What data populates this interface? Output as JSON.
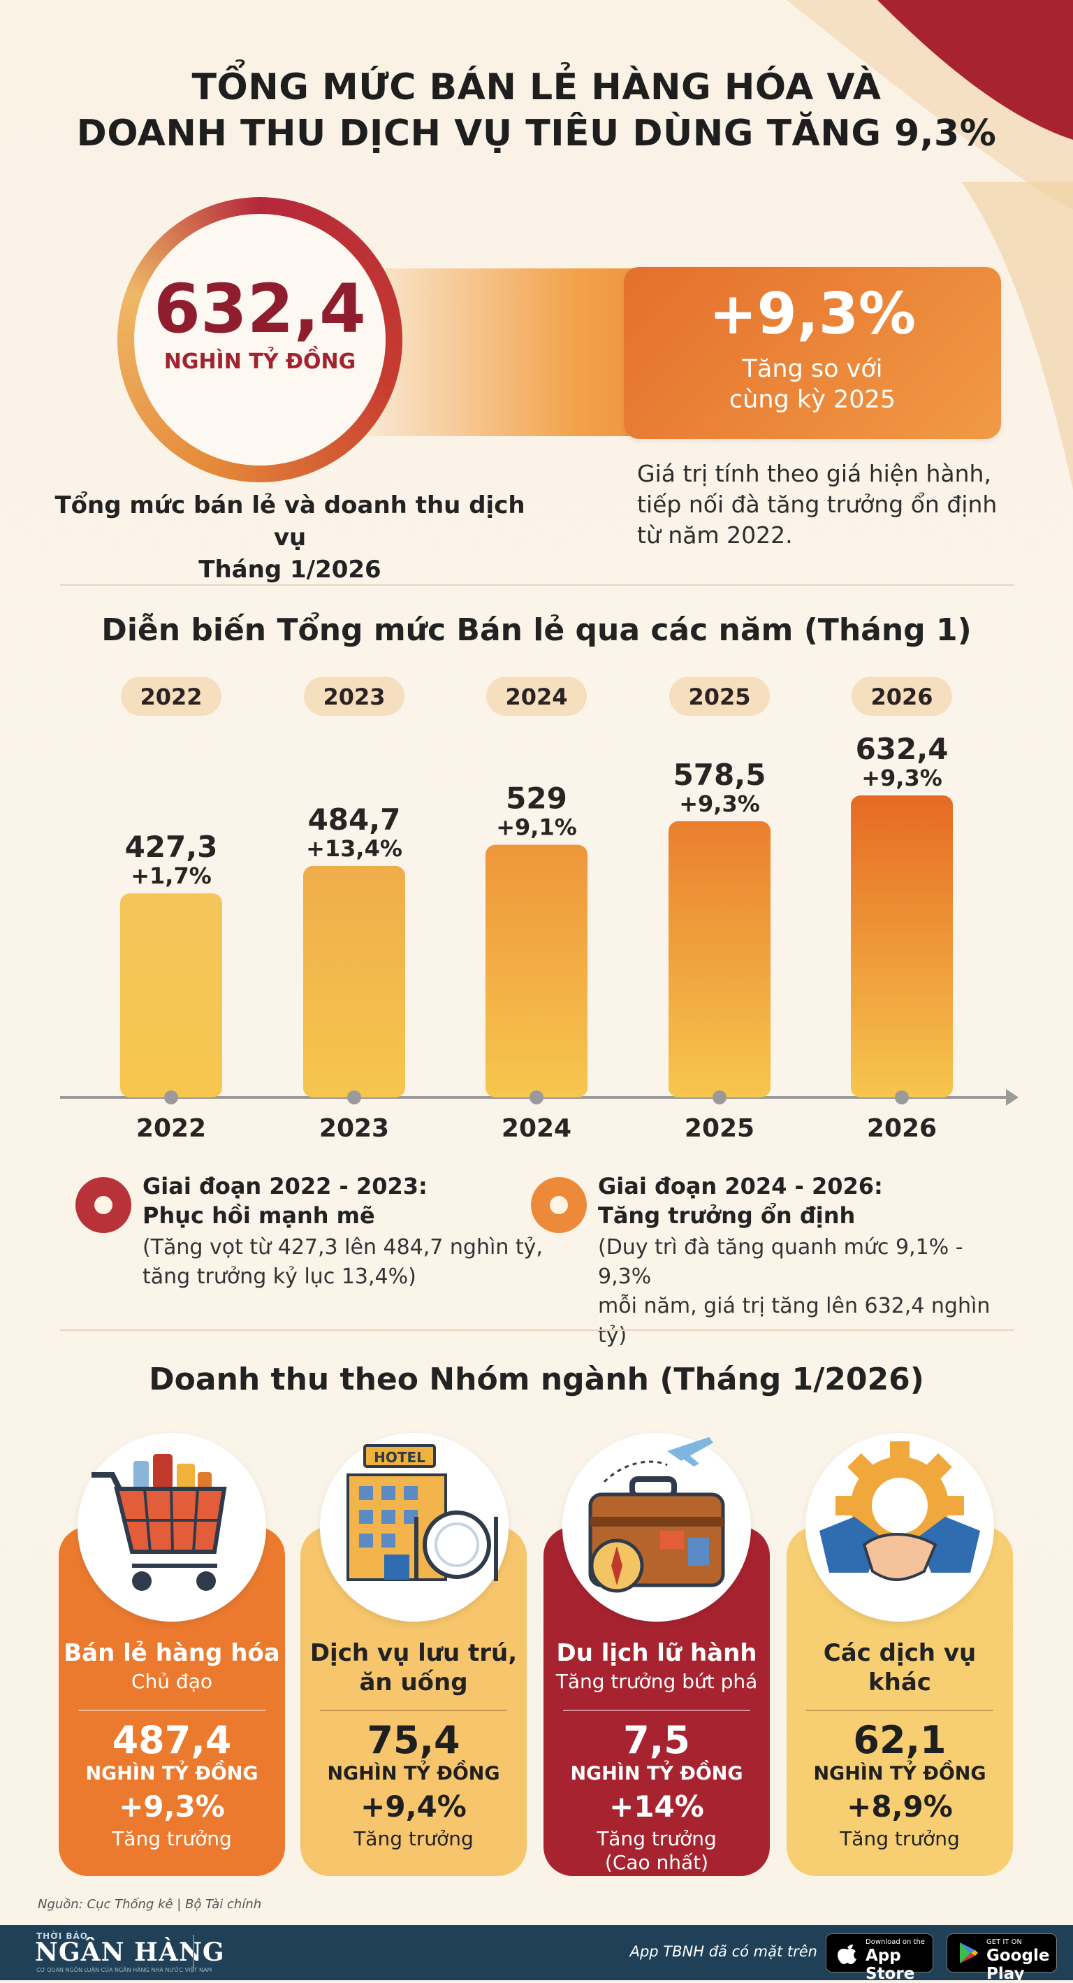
{
  "title_lines": [
    "TỔNG MỨC BÁN LẺ HÀNG HÓA VÀ",
    "DOANH THU DỊCH VỤ TIÊU DÙNG TĂNG 9,3%"
  ],
  "headline": {
    "value": "632,4",
    "unit": "NGHÌN TỶ ĐỒNG",
    "label_lines": [
      "Tổng mức bán lẻ và doanh thu dịch vụ",
      "Tháng 1/2026"
    ],
    "growth_value": "+9,3%",
    "growth_desc_lines": [
      "Tăng so với",
      "cùng kỳ 2025"
    ],
    "note_lines": [
      "Giá trị tính theo giá hiện hành,",
      "tiếp nối đà tăng trưởng ổn định",
      "từ năm 2022."
    ]
  },
  "section_trend_title": "Diễn biến Tổng mức Bán lẻ qua các năm (Tháng 1)",
  "chart_data": {
    "type": "bar",
    "title": "Diễn biến Tổng mức Bán lẻ qua các năm (Tháng 1)",
    "categories": [
      "2022",
      "2023",
      "2024",
      "2025",
      "2026"
    ],
    "values": [
      427.3,
      484.7,
      529,
      578.5,
      632.4
    ],
    "value_labels": [
      "427,3",
      "484,7",
      "529",
      "578,5",
      "632,4"
    ],
    "growth_labels": [
      "+1,7%",
      "+13,4%",
      "+9,1%",
      "+9,3%",
      "+9,3%"
    ],
    "grid": false,
    "bar_colors": [
      "#f3c55a",
      "#efad4a",
      "#ee963a",
      "#ea7f2e",
      "#e66a23"
    ]
  },
  "stages": [
    {
      "head_lines": [
        "Giai đoạn 2022 - 2023:",
        "Phục hồi mạnh mẽ"
      ],
      "body_lines": [
        "(Tăng vọt từ 427,3 lên 484,7 nghìn tỷ,",
        "tăng trưởng kỷ lục 13,4%)"
      ],
      "color": "#b8323a"
    },
    {
      "head_lines": [
        "Giai đoạn 2024 - 2026:",
        "Tăng trưởng ổn định"
      ],
      "body_lines": [
        "(Duy trì đà tăng quanh mức 9,1% - 9,3%",
        "mỗi năm, giá trị tăng lên 632,4 nghìn tỷ)"
      ],
      "color": "#ec8a3a"
    }
  ],
  "section_sector_title": "Doanh thu theo Nhóm ngành (Tháng 1/2026)",
  "sectors": [
    {
      "name_lines": [
        "Bán lẻ hàng hóa"
      ],
      "sub_lines": [
        "Chủ đạo"
      ],
      "value": "487,4",
      "unit": "NGHÌN TỶ ĐỒNG",
      "growth": "+9,3%",
      "desc_lines": [
        "Tăng trưởng"
      ],
      "icon": "shopping-cart-icon",
      "bg": "#eb7a2f",
      "text_color": "#ffffff"
    },
    {
      "name_lines": [
        "Dịch vụ lưu trú,",
        "ăn uống"
      ],
      "sub_lines": [],
      "value": "75,4",
      "unit": "NGHÌN TỶ ĐỒNG",
      "growth": "+9,4%",
      "desc_lines": [
        "Tăng trưởng"
      ],
      "icon": "hotel-dining-icon",
      "bg": "#f6c56c",
      "text_color": "#222222"
    },
    {
      "name_lines": [
        "Du lịch lữ hành"
      ],
      "sub_lines": [
        "Tăng trưởng bứt phá"
      ],
      "value": "7,5",
      "unit": "NGHÌN TỶ ĐỒNG",
      "growth": "+14%",
      "desc_lines": [
        "Tăng trưởng",
        "(Cao nhất)"
      ],
      "icon": "travel-suitcase-icon",
      "bg": "#a7232f",
      "text_color": "#ffffff"
    },
    {
      "name_lines": [
        "Các dịch vụ",
        "khác"
      ],
      "sub_lines": [],
      "value": "62,1",
      "unit": "NGHÌN TỶ ĐỒNG",
      "growth": "+8,9%",
      "desc_lines": [
        "Tăng trưởng"
      ],
      "icon": "handshake-gear-icon",
      "bg": "#f7cf72",
      "text_color": "#222222"
    }
  ],
  "source": "Nguồn: Cục Thống kê | Bộ Tài chính",
  "footer": {
    "logo_small": "THỜI BÁO",
    "logo_big": "NGÂN HÀNG",
    "logo_tag": "CƠ QUAN NGÔN LUẬN CỦA NGÂN HÀNG NHÀ NƯỚC VIỆT NAM",
    "app_text": "App TBNH đã có mặt trên",
    "appstore_small": "Download on the",
    "appstore_big": "App Store",
    "googleplay_small": "GET IT ON",
    "googleplay_big": "Google Play"
  }
}
